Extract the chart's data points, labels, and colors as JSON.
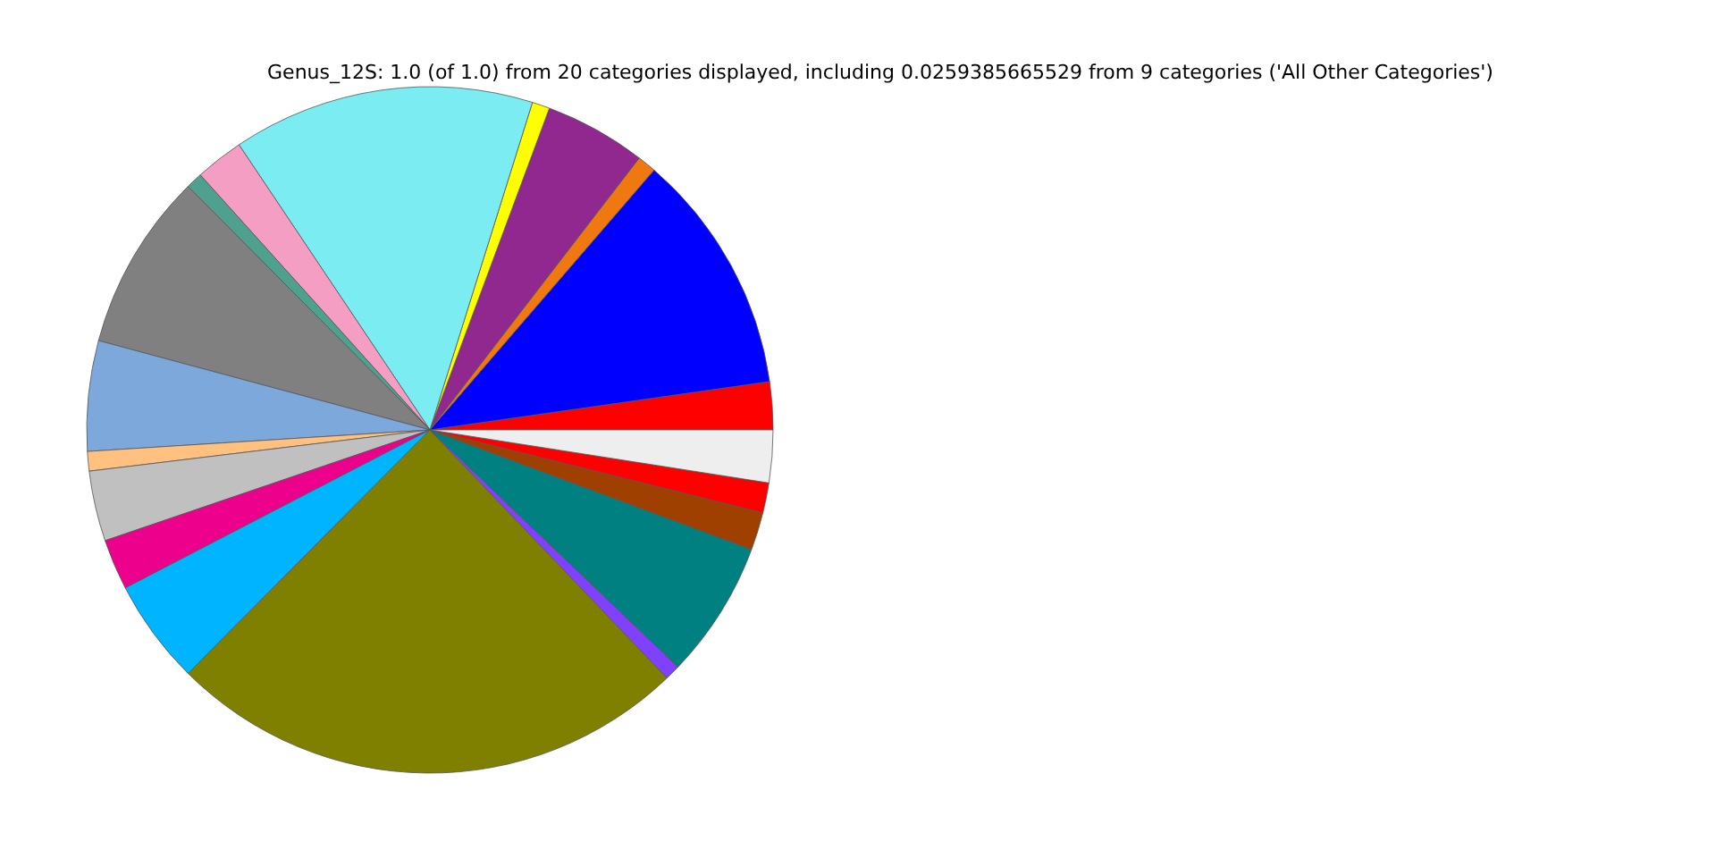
{
  "chart_data": {
    "type": "pie",
    "title": "Genus_12S: 1.0 (of 1.0) from 20 categories displayed, including 0.0259385665529 from 9 categories ('All Other Categories')",
    "categories": [
      null,
      null,
      null,
      null,
      null,
      null,
      null,
      null,
      null,
      null,
      null,
      null,
      null,
      null,
      null,
      null,
      null,
      null,
      null,
      null
    ],
    "values": [
      2.25,
      11.42,
      0.89,
      4.78,
      0.83,
      14.22,
      2.28,
      0.78,
      8.36,
      5.19,
      0.92,
      3.31,
      2.39,
      4.94,
      24.58,
      0.72,
      6.47,
      1.78,
      1.42,
      2.47
    ],
    "colors": [
      "#ff0000",
      "#0000ff",
      "#f07810",
      "#902890",
      "#ffff00",
      "#7aecf2",
      "#f49ec4",
      "#50a090",
      "#808080",
      "#7ca8dc",
      "#ffc080",
      "#c0c0c0",
      "#ec008c",
      "#00b4ff",
      "#808000",
      "#8040ff",
      "#008080",
      "#a04000",
      "#ff0000",
      "#eeeeee"
    ]
  }
}
